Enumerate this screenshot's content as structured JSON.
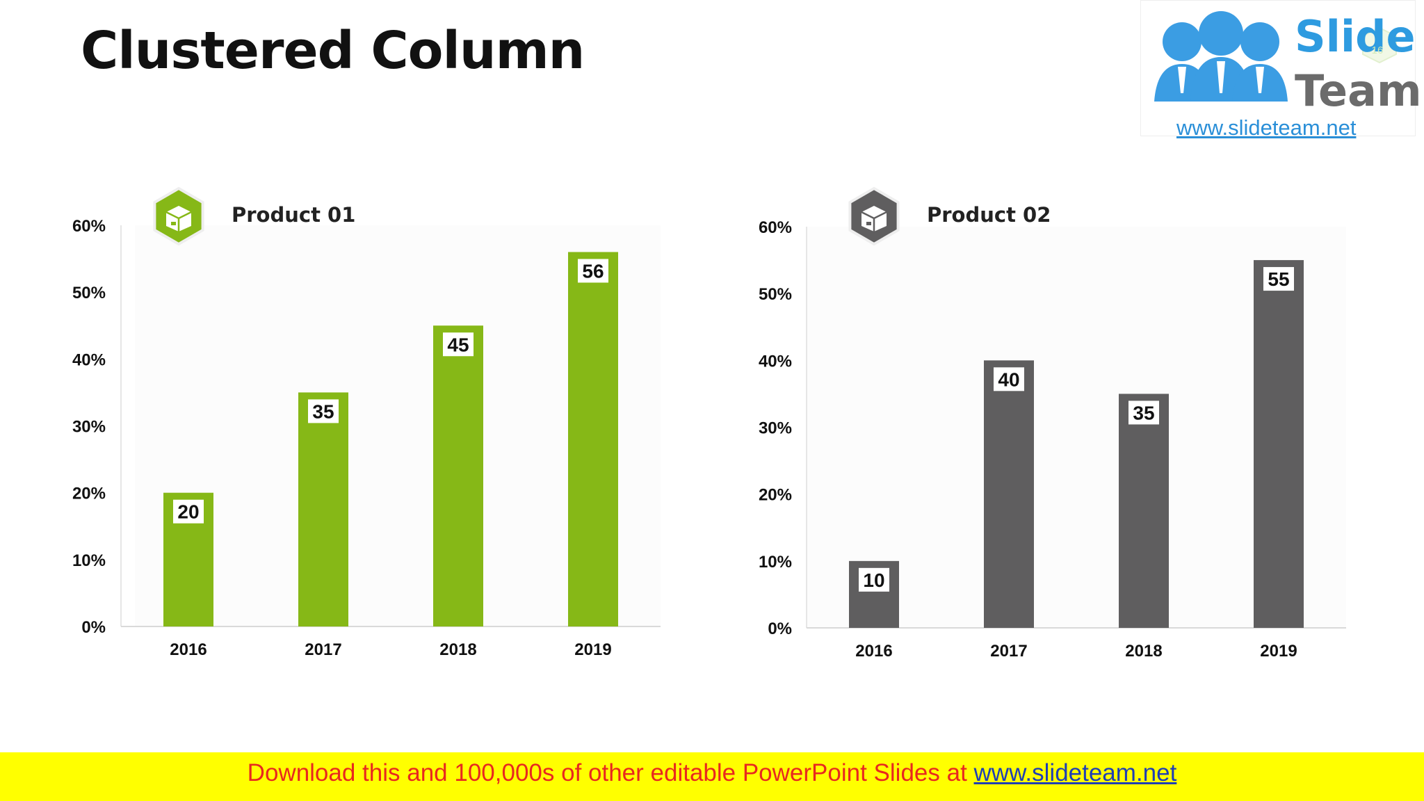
{
  "page": {
    "title": "Clustered Column"
  },
  "logo": {
    "word1": "Slide",
    "word2": "Team",
    "url": "www.slideteam.net",
    "badge": "16",
    "colors": {
      "blue": "#2e9be0",
      "grey": "#6b6b6b"
    }
  },
  "banner": {
    "text": "Download this and 100,000s of other editable PowerPoint Slides at ",
    "link": "www.slideteam.net",
    "colors": {
      "background": "#ffff00",
      "text": "#e8281f",
      "link": "#1f3fb4"
    }
  },
  "chart_data": [
    {
      "type": "bar",
      "title": "Product 01",
      "icon": "box-icon",
      "color": "#86b817",
      "categories": [
        "2016",
        "2017",
        "2018",
        "2019"
      ],
      "values": [
        20,
        35,
        45,
        56
      ],
      "data_labels": [
        "20",
        "35",
        "45",
        "56"
      ],
      "ylim": [
        0,
        60
      ],
      "yticks": [
        "0%",
        "10%",
        "20%",
        "30%",
        "40%",
        "50%",
        "60%"
      ],
      "grid": false
    },
    {
      "type": "bar",
      "title": "Product 02",
      "icon": "box-icon",
      "color": "#5f5e5f",
      "categories": [
        "2016",
        "2017",
        "2018",
        "2019"
      ],
      "values": [
        10,
        40,
        35,
        55
      ],
      "data_labels": [
        "10",
        "40",
        "35",
        "55"
      ],
      "ylim": [
        0,
        60
      ],
      "yticks": [
        "0%",
        "10%",
        "20%",
        "30%",
        "40%",
        "50%",
        "60%"
      ],
      "grid": false
    }
  ]
}
